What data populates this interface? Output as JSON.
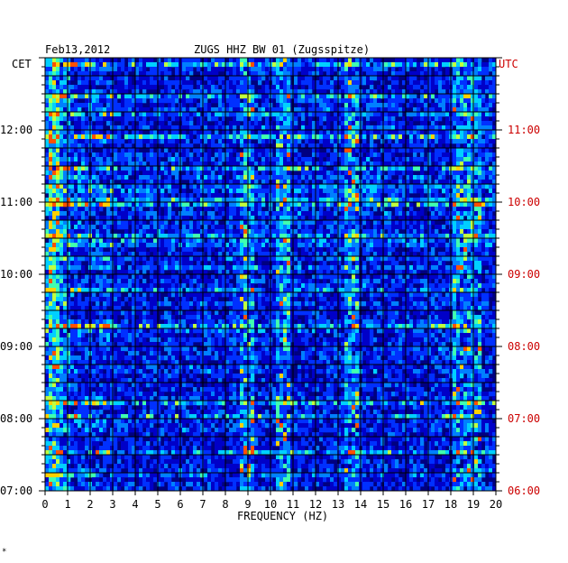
{
  "chart_data": {
    "type": "heatmap",
    "date": "Feb13,2012",
    "station": "ZUGS HHZ BW 01 (Zugsspitze)",
    "left_tz": "CET",
    "right_tz": "UTC",
    "xlabel": "FREQUENCY (HZ)",
    "xlim": [
      0,
      20
    ],
    "x_ticks": [
      "0",
      "1",
      "2",
      "3",
      "4",
      "5",
      "6",
      "7",
      "8",
      "9",
      "10",
      "11",
      "12",
      "13",
      "14",
      "15",
      "16",
      "17",
      "18",
      "19",
      "20"
    ],
    "y_ticks_left": [
      "12:00",
      "11:00",
      "10:00",
      "09:00",
      "08:00",
      "07:00"
    ],
    "y_ticks_right": [
      "11:00",
      "10:00",
      "09:00",
      "08:00",
      "07:00",
      "06:00"
    ],
    "grid": true,
    "colors": {
      "background": "#000080",
      "utc_text": "#cc0000",
      "grid": "#000000"
    },
    "colorscale": [
      "#000090",
      "#0000c8",
      "#0030ff",
      "#0080ff",
      "#00d0ff",
      "#40ffb0",
      "#c0ff40",
      "#ffd000",
      "#ff5000"
    ],
    "notable_lines_hz": [
      0.4,
      9.0,
      10.6,
      13.6,
      18.4,
      19.0
    ]
  },
  "footer_mark": "*"
}
